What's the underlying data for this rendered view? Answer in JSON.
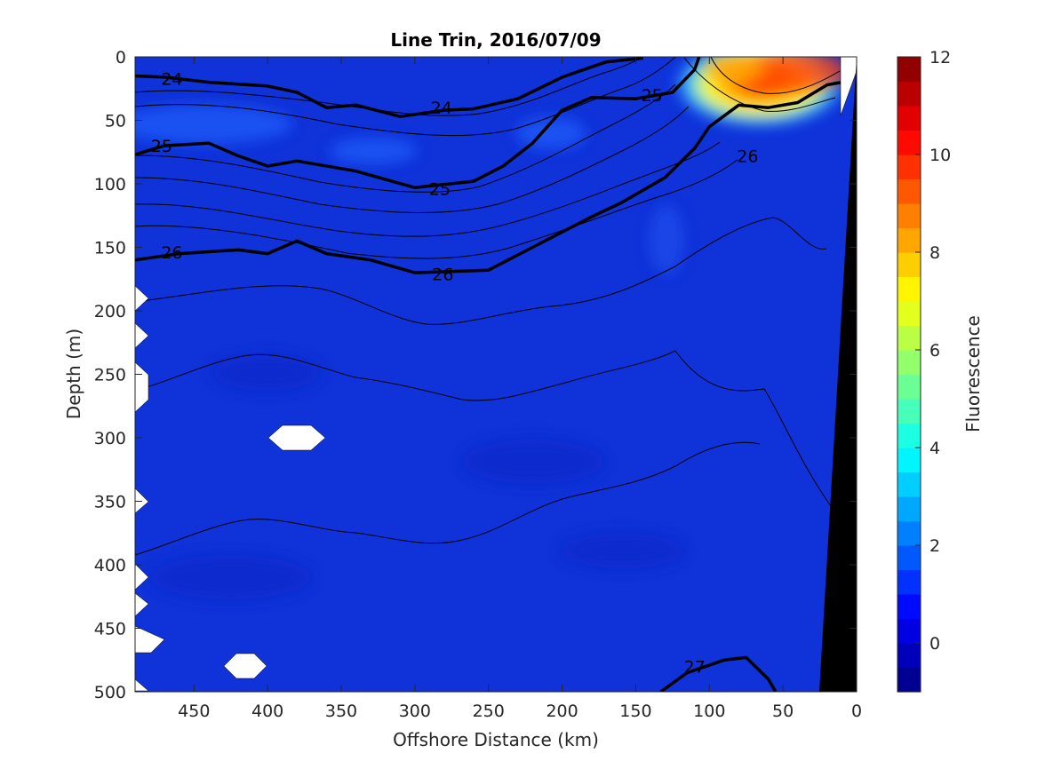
{
  "chart_data": {
    "type": "heatmap",
    "title": "Line Trin, 2016/07/09",
    "xlabel": "Offshore Distance (km)",
    "ylabel": "Depth (m)",
    "colorbar_label": "Fluorescence",
    "xlim": [
      490,
      0
    ],
    "ylim": [
      0,
      500
    ],
    "x_ticks": [
      450,
      400,
      350,
      300,
      250,
      200,
      150,
      100,
      50,
      0
    ],
    "y_ticks": [
      0,
      50,
      100,
      150,
      200,
      250,
      300,
      350,
      400,
      450,
      500
    ],
    "colorbar_range": [
      -1,
      12
    ],
    "colorbar_ticks": [
      0,
      2,
      4,
      6,
      8,
      10,
      12
    ],
    "colormap": "jet",
    "contour_labels": [
      {
        "text": "24",
        "x": 465,
        "y": 17
      },
      {
        "text": "24",
        "x": 282,
        "y": 40
      },
      {
        "text": "25",
        "x": 472,
        "y": 70
      },
      {
        "text": "25",
        "x": 139,
        "y": 30
      },
      {
        "text": "25",
        "x": 283,
        "y": 104
      },
      {
        "text": "26",
        "x": 74,
        "y": 78
      },
      {
        "text": "26",
        "x": 465,
        "y": 154
      },
      {
        "text": "26",
        "x": 281,
        "y": 171
      },
      {
        "text": "27",
        "x": 110,
        "y": 480
      }
    ],
    "density_contours": [
      {
        "level": 24,
        "bold": true,
        "points": [
          [
            490,
            15
          ],
          [
            470,
            16
          ],
          [
            440,
            20
          ],
          [
            400,
            23
          ],
          [
            380,
            28
          ],
          [
            360,
            40
          ],
          [
            340,
            38
          ],
          [
            310,
            47
          ],
          [
            280,
            42
          ],
          [
            260,
            41
          ],
          [
            230,
            33
          ],
          [
            200,
            16
          ],
          [
            170,
            4
          ],
          [
            145,
            1
          ]
        ]
      },
      {
        "level": 25,
        "bold": true,
        "points": [
          [
            490,
            77
          ],
          [
            470,
            70
          ],
          [
            440,
            68
          ],
          [
            420,
            78
          ],
          [
            400,
            86
          ],
          [
            380,
            82
          ],
          [
            340,
            90
          ],
          [
            300,
            103
          ],
          [
            260,
            98
          ],
          [
            240,
            86
          ],
          [
            220,
            68
          ],
          [
            200,
            42
          ],
          [
            180,
            32
          ],
          [
            150,
            33
          ],
          [
            125,
            28
          ],
          [
            110,
            10
          ],
          [
            107,
            0
          ]
        ]
      },
      {
        "level": 26,
        "bold": true,
        "points": [
          [
            490,
            160
          ],
          [
            460,
            155
          ],
          [
            420,
            152
          ],
          [
            400,
            155
          ],
          [
            380,
            145
          ],
          [
            360,
            155
          ],
          [
            330,
            160
          ],
          [
            300,
            170
          ],
          [
            250,
            168
          ],
          [
            220,
            150
          ],
          [
            180,
            126
          ],
          [
            160,
            115
          ],
          [
            130,
            95
          ],
          [
            110,
            72
          ],
          [
            100,
            55
          ],
          [
            80,
            38
          ],
          [
            60,
            40
          ],
          [
            40,
            36
          ],
          [
            20,
            22
          ],
          [
            10,
            20
          ]
        ]
      },
      {
        "level": 27,
        "bold": true,
        "points": [
          [
            133,
            500
          ],
          [
            115,
            485
          ],
          [
            90,
            475
          ],
          [
            75,
            473
          ],
          [
            60,
            490
          ],
          [
            55,
            500
          ]
        ]
      }
    ],
    "fluorescence_hotspots": [
      {
        "x": 30,
        "y": 12,
        "value": 11
      },
      {
        "x": 55,
        "y": 8,
        "value": 9
      },
      {
        "x": 75,
        "y": 20,
        "value": 7
      },
      {
        "x": 90,
        "y": 35,
        "value": 4
      }
    ]
  }
}
